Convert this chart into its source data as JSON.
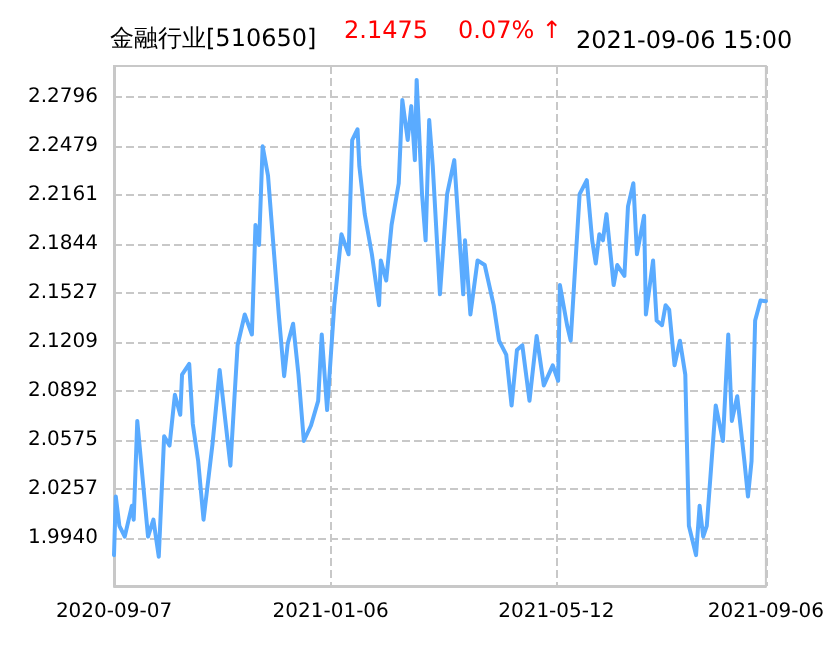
{
  "chart_data": {
    "type": "line",
    "title": "金融行业[510650]",
    "subtitle": "2021-09-06 15:00",
    "annotations": [
      "2.1475",
      "0.07% ↑"
    ],
    "x": [
      "2020-09-07",
      "2020-09-08",
      "2020-09-10",
      "2020-09-13",
      "2020-09-17",
      "2020-09-18",
      "2020-09-20",
      "2020-09-26",
      "2020-09-29",
      "2020-10-02",
      "2020-10-05",
      "2020-10-08",
      "2020-10-11",
      "2020-10-14",
      "2020-10-15",
      "2020-10-19",
      "2020-10-21",
      "2020-10-24",
      "2020-10-27",
      "2020-11-01",
      "2020-11-05",
      "2020-11-11",
      "2020-11-15",
      "2020-11-19",
      "2020-11-23",
      "2020-11-25",
      "2020-11-27",
      "2020-11-29",
      "2020-12-02",
      "2020-12-08",
      "2020-12-11",
      "2020-12-13",
      "2020-12-16",
      "2020-12-19",
      "2020-12-22",
      "2020-12-26",
      "2020-12-30",
      "2021-01-01",
      "2021-01-04",
      "2021-01-08",
      "2021-01-12",
      "2021-01-16",
      "2021-01-18",
      "2021-01-21",
      "2021-01-22",
      "2021-01-25",
      "2021-01-29",
      "2021-02-02",
      "2021-02-03",
      "2021-02-06",
      "2021-02-09",
      "2021-02-13",
      "2021-02-15",
      "2021-02-18",
      "2021-02-20",
      "2021-02-22",
      "2021-02-23",
      "2021-02-26",
      "2021-02-28",
      "2021-03-02",
      "2021-03-04",
      "2021-03-08",
      "2021-03-12",
      "2021-03-16",
      "2021-03-18",
      "2021-03-21",
      "2021-03-22",
      "2021-03-25",
      "2021-03-29",
      "2021-04-02",
      "2021-04-07",
      "2021-04-10",
      "2021-04-14",
      "2021-04-17",
      "2021-04-20",
      "2021-04-23",
      "2021-04-27",
      "2021-05-01",
      "2021-05-05",
      "2021-05-10",
      "2021-05-13",
      "2021-05-14",
      "2021-05-18",
      "2021-05-20",
      "2021-05-25",
      "2021-05-29",
      "2021-06-01",
      "2021-06-03",
      "2021-06-05",
      "2021-06-07",
      "2021-06-09",
      "2021-06-13",
      "2021-06-15",
      "2021-06-19",
      "2021-06-21",
      "2021-06-24",
      "2021-06-26",
      "2021-06-30",
      "2021-07-01",
      "2021-07-05",
      "2021-07-07",
      "2021-07-10",
      "2021-07-12",
      "2021-07-14",
      "2021-07-17",
      "2021-07-20",
      "2021-07-23",
      "2021-07-25",
      "2021-07-29",
      "2021-07-31",
      "2021-08-02",
      "2021-08-04",
      "2021-08-09",
      "2021-08-13",
      "2021-08-16",
      "2021-08-18",
      "2021-08-21",
      "2021-08-25",
      "2021-08-27",
      "2021-08-29",
      "2021-08-31",
      "2021-09-03",
      "2021-09-06"
    ],
    "series": [
      {
        "color": "#5aabff",
        "values": [
          1.983,
          2.021,
          2.002,
          1.995,
          2.015,
          2.006,
          2.07,
          1.995,
          2.006,
          1.982,
          2.06,
          2.054,
          2.087,
          2.074,
          2.1,
          2.107,
          2.068,
          2.044,
          2.006,
          2.055,
          2.103,
          2.041,
          2.119,
          2.139,
          2.126,
          2.197,
          2.184,
          2.248,
          2.229,
          2.139,
          2.099,
          2.12,
          2.133,
          2.1,
          2.057,
          2.067,
          2.083,
          2.126,
          2.077,
          2.145,
          2.191,
          2.178,
          2.252,
          2.259,
          2.235,
          2.204,
          2.178,
          2.145,
          2.174,
          2.161,
          2.197,
          2.224,
          2.278,
          2.252,
          2.274,
          2.239,
          2.291,
          2.217,
          2.187,
          2.265,
          2.235,
          2.152,
          2.217,
          2.239,
          2.204,
          2.152,
          2.187,
          2.139,
          2.174,
          2.171,
          2.145,
          2.122,
          2.113,
          2.08,
          2.116,
          2.119,
          2.083,
          2.125,
          2.093,
          2.106,
          2.096,
          2.158,
          2.132,
          2.122,
          2.217,
          2.226,
          2.187,
          2.172,
          2.191,
          2.187,
          2.204,
          2.158,
          2.171,
          2.164,
          2.209,
          2.224,
          2.178,
          2.203,
          2.139,
          2.174,
          2.135,
          2.132,
          2.145,
          2.142,
          2.106,
          2.122,
          2.1,
          2.002,
          1.983,
          2.015,
          1.995,
          2.002,
          2.08,
          2.057,
          2.126,
          2.07,
          2.086,
          2.044,
          2.021,
          2.044,
          2.135,
          2.148,
          2.1475
        ]
      }
    ],
    "xlim": [
      "2020-09-07",
      "2021-09-06"
    ],
    "xticks": [
      "2020-09-07",
      "2021-01-06",
      "2021-05-12",
      "2021-09-06"
    ],
    "ylim": [
      1.963,
      2.3
    ],
    "yticks": [
      {
        "value": 1.994,
        "label": "1.9940"
      },
      2.0257,
      2.0575,
      2.0892,
      2.1209,
      2.1527,
      2.1844,
      2.2161,
      2.2479,
      2.2796
    ],
    "grid": true,
    "marker": "none",
    "line_style": "solid"
  }
}
